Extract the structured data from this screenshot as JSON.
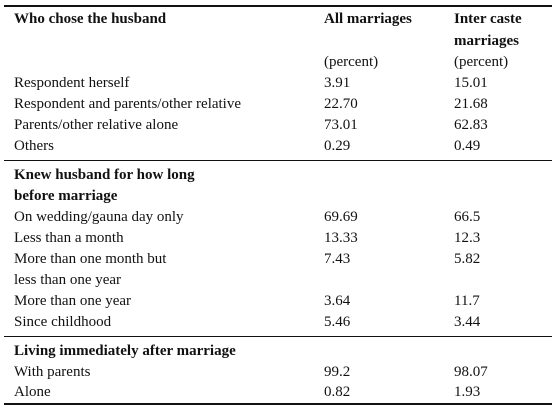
{
  "header": {
    "col1": "Who chose the husband",
    "col2": "All marriages",
    "col3_line1": "Inter caste",
    "col3_line2": "marriages"
  },
  "units": {
    "col2": "(percent)",
    "col3": "(percent)"
  },
  "section1": {
    "rows": [
      {
        "label": "Respondent herself",
        "all": "3.91",
        "inter": "15.01"
      },
      {
        "label": "Respondent and parents/other relative",
        "all": "22.70",
        "inter": "21.68"
      },
      {
        "label": "Parents/other relative alone",
        "all": "73.01",
        "inter": "62.83"
      },
      {
        "label": "Others",
        "all": "0.29",
        "inter": "0.49"
      }
    ]
  },
  "section2": {
    "title_line1": "Knew husband for how long",
    "title_line2": "before marriage",
    "rows": [
      {
        "label": "On wedding/gauna day only",
        "all": "69.69",
        "inter": "66.5"
      },
      {
        "label": "Less than a month",
        "all": "13.33",
        "inter": "12.3"
      },
      {
        "label": "More than one month but",
        "label_line2": "less than one year",
        "all": "7.43",
        "inter": "5.82"
      },
      {
        "label": "More than one year",
        "all": "3.64",
        "inter": "11.7"
      },
      {
        "label": "Since childhood",
        "all": "5.46",
        "inter": "3.44"
      }
    ]
  },
  "section3": {
    "title": "Living immediately after marriage",
    "rows": [
      {
        "label": "With parents",
        "all": "99.2",
        "inter": "98.07"
      },
      {
        "label": "Alone",
        "all": "0.82",
        "inter": "1.93"
      }
    ]
  }
}
